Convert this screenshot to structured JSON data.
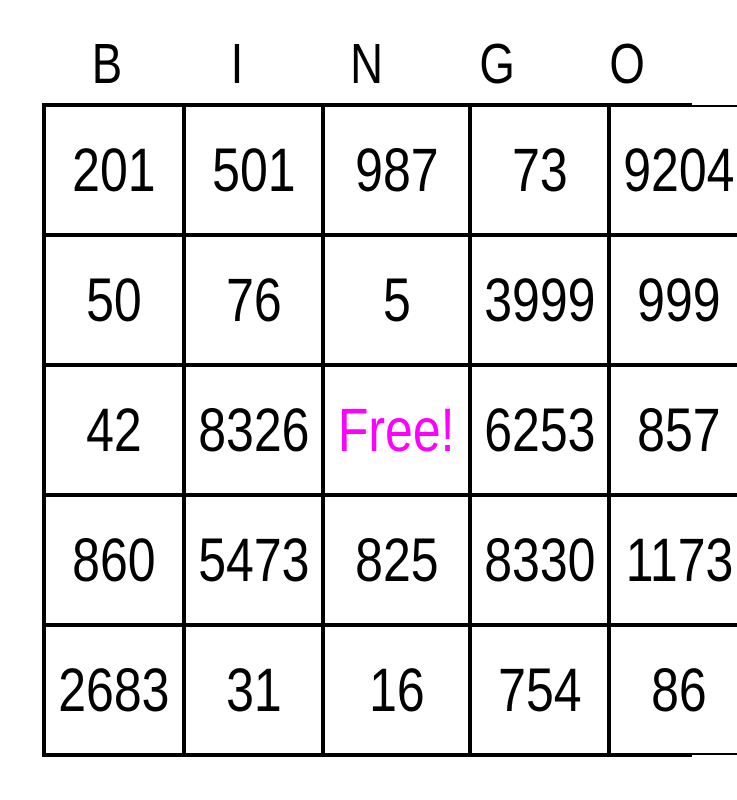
{
  "card": {
    "title": "BINGO",
    "header_letters": [
      "B",
      "I",
      "N",
      "G",
      "O"
    ],
    "rows": [
      [
        "201",
        "501",
        "987",
        "73",
        "9204"
      ],
      [
        "50",
        "76",
        "5",
        "3999",
        "999"
      ],
      [
        "42",
        "8326",
        "Free!",
        "6253",
        "857"
      ],
      [
        "860",
        "5473",
        "825",
        "8330",
        "1173"
      ],
      [
        "2683",
        "31",
        "16",
        "754",
        "86"
      ]
    ],
    "free_cell": {
      "row_index": 2,
      "col_index": 2,
      "label": "Free!"
    },
    "colors": {
      "text": "#000000",
      "grid_border": "#000000",
      "background": "#FFFFFF",
      "free_text": "#FF00FF"
    }
  }
}
